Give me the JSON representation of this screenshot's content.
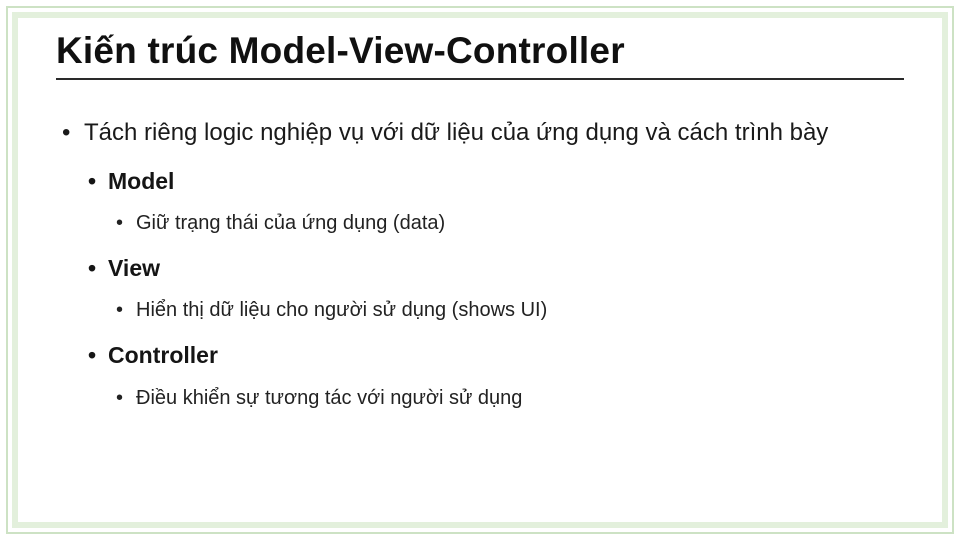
{
  "colors": {
    "outer_border": "#cde2c4",
    "inner_border": "#e3f0dc",
    "text": "#101010",
    "title_underline": "#2a2a2a",
    "background": "#ffffff"
  },
  "typography": {
    "title_fontsize": 37,
    "lvl1_fontsize": 24,
    "lvl2_fontsize": 23,
    "lvl3_fontsize": 20,
    "title_weight": 700,
    "lvl2_weight": 700
  },
  "title": "Kiến trúc Model-View-Controller",
  "bullets": {
    "lvl1": "Tách riêng logic nghiệp vụ với dữ liệu của ứng dụng và cách trình bày",
    "items": [
      {
        "name": "Model",
        "detail": "Giữ trạng thái của ứng dụng (data)"
      },
      {
        "name": "View",
        "detail": "Hiển thị dữ liệu cho người sử dụng (shows UI)"
      },
      {
        "name": "Controller",
        "detail": "Điều khiển sự tương tác với người sử dụng"
      }
    ]
  }
}
